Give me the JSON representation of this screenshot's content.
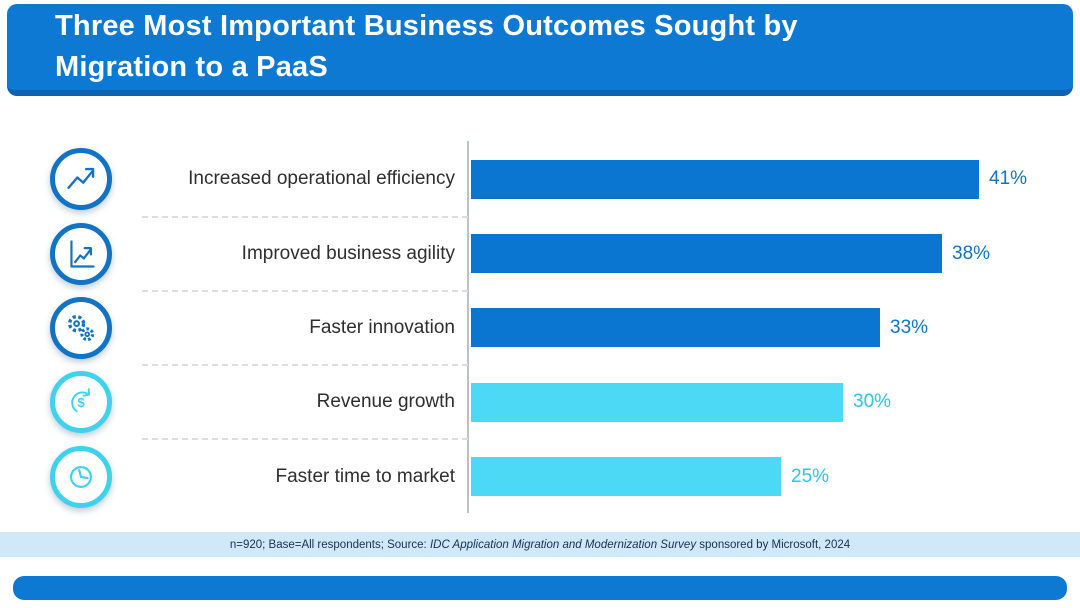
{
  "header": {
    "title": "Three Most Important Business Outcomes Sought by Migration to a PaaS",
    "bg_color": "#0d79d2",
    "edge_color": "#0b63b2"
  },
  "chart_data": {
    "type": "bar",
    "orientation": "horizontal",
    "title": "Three Most Important Business Outcomes Sought by Migration to a PaaS",
    "categories": [
      "Increased operational efficiency",
      "Improved business agility",
      "Faster innovation",
      "Revenue growth",
      "Faster time to market"
    ],
    "values": [
      41,
      38,
      33,
      30,
      25
    ],
    "value_labels": [
      "41%",
      "38%",
      "33%",
      "30%",
      "25%"
    ],
    "bar_colors": [
      "#0b76d1",
      "#0b76d1",
      "#0b76d1",
      "#4cd9f6",
      "#4cd9f6"
    ],
    "value_label_colors": [
      "#0f74c8",
      "#0f74c8",
      "#0f74c8",
      "#2cc5e8",
      "#2cc5e8"
    ],
    "icons": [
      "trend-up-icon",
      "growth-chart-icon",
      "gears-icon",
      "revenue-cycle-icon",
      "clock-icon"
    ],
    "icon_ring_colors": [
      "#1173c5",
      "#1173c5",
      "#1173c5",
      "#3ed2ee",
      "#3ed2ee"
    ],
    "xlim": [
      0,
      46
    ],
    "xlabel": "",
    "ylabel": "",
    "legend": "none",
    "grid": "dashed-row-separators"
  },
  "footer": {
    "note_prefix": "n=920; Base=All respondents; Source: ",
    "note_italic": "IDC Application Migration and Modernization Survey",
    "note_suffix": " sponsored by Microsoft, 2024",
    "strip_color": "#cfe9f9"
  },
  "accent": {
    "bottom_bar_color": "#0d79d2"
  }
}
